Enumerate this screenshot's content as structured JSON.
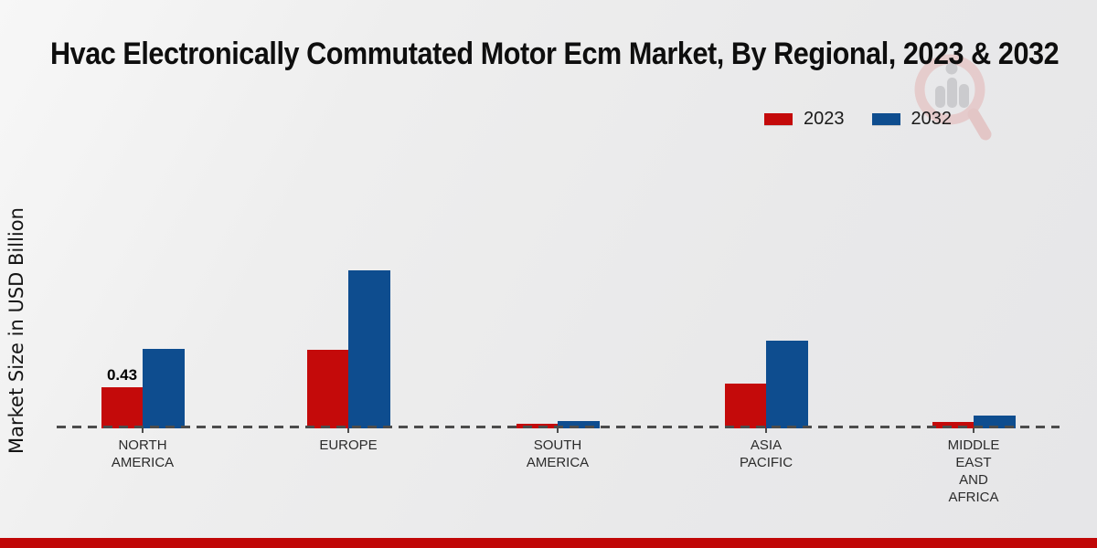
{
  "page": {
    "title": "Hvac Electronically Commutated Motor Ecm Market, By Regional, 2023 & 2032",
    "ylabel": "Market Size in USD Billion",
    "footer_color": "#c00707",
    "background_color": "#ebebeb"
  },
  "legend": {
    "position": "top-right",
    "items": [
      {
        "label": "2023",
        "color": "#c40a0a"
      },
      {
        "label": "2032",
        "color": "#0e4d8f"
      }
    ]
  },
  "watermark": {
    "name": "magnifier-bars-logo",
    "ring_color": "#e3b5b5",
    "figure_color": "#b4b4b8"
  },
  "chart_data": {
    "type": "bar",
    "title": "Hvac Electronically Commutated Motor Ecm Market, By Regional, 2023 & 2032",
    "xlabel": "",
    "ylabel": "Market Size in USD Billion",
    "unit": "USD Billion",
    "categories": [
      "North America",
      "Europe",
      "South America",
      "Asia Pacific",
      "Middle East and Africa"
    ],
    "category_label_lines": [
      [
        "NORTH",
        "AMERICA"
      ],
      [
        "EUROPE"
      ],
      [
        "SOUTH",
        "AMERICA"
      ],
      [
        "ASIA",
        "PACIFIC"
      ],
      [
        "MIDDLE",
        "EAST",
        "AND",
        "AFRICA"
      ]
    ],
    "series": [
      {
        "name": "2023",
        "color": "#c40a0a",
        "values": [
          0.43,
          0.82,
          0.05,
          0.47,
          0.07
        ],
        "data_labels": [
          "0.43",
          "",
          "",
          "",
          ""
        ]
      },
      {
        "name": "2032",
        "color": "#0e4d8f",
        "values": [
          0.83,
          1.65,
          0.08,
          0.92,
          0.13
        ],
        "data_labels": [
          "",
          "",
          "",
          "",
          ""
        ]
      }
    ],
    "ylim": [
      0,
      1.8
    ],
    "gridlines": false,
    "x_axis_style": "dashed-baseline",
    "legend_position": "top-right"
  }
}
